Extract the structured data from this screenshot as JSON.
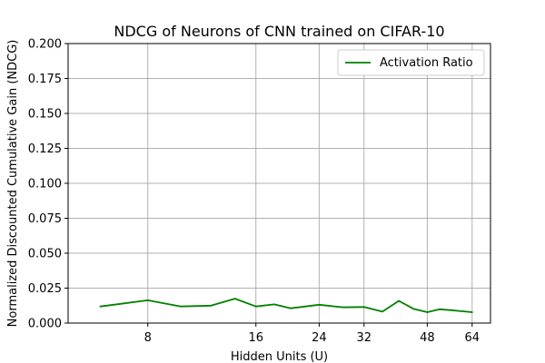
{
  "chart_data": {
    "type": "line",
    "title": "NDCG of Neurons of CNN trained on CIFAR-10",
    "xlabel": "Hidden Units (U)",
    "ylabel": "Normalized Discounted Cumulative Gain (NDCG)",
    "x_scale": "log2",
    "xlim": [
      4.8,
      72
    ],
    "ylim": [
      0.0,
      0.2
    ],
    "x_ticks": [
      8,
      16,
      24,
      32,
      48,
      64
    ],
    "x_tick_labels": [
      "8",
      "16",
      "24",
      "32",
      "48",
      "64"
    ],
    "y_ticks": [
      0.0,
      0.025,
      0.05,
      0.075,
      0.1,
      0.125,
      0.15,
      0.175,
      0.2
    ],
    "y_tick_labels": [
      "0.000",
      "0.025",
      "0.050",
      "0.075",
      "0.100",
      "0.125",
      "0.150",
      "0.175",
      "0.200"
    ],
    "grid": true,
    "legend_position": "top-right",
    "series": [
      {
        "name": "Activation Ratio",
        "color": "#008000",
        "x": [
          5.9,
          8,
          9.9,
          12,
          14,
          16,
          18,
          20,
          24,
          27.9,
          32,
          36,
          40,
          44,
          48,
          52,
          56,
          64
        ],
        "y": [
          0.0119,
          0.0163,
          0.0119,
          0.0125,
          0.0175,
          0.0119,
          0.0134,
          0.0106,
          0.0131,
          0.0113,
          0.0115,
          0.0082,
          0.0159,
          0.0101,
          0.0078,
          0.0099,
          0.0092,
          0.0078
        ]
      }
    ]
  }
}
